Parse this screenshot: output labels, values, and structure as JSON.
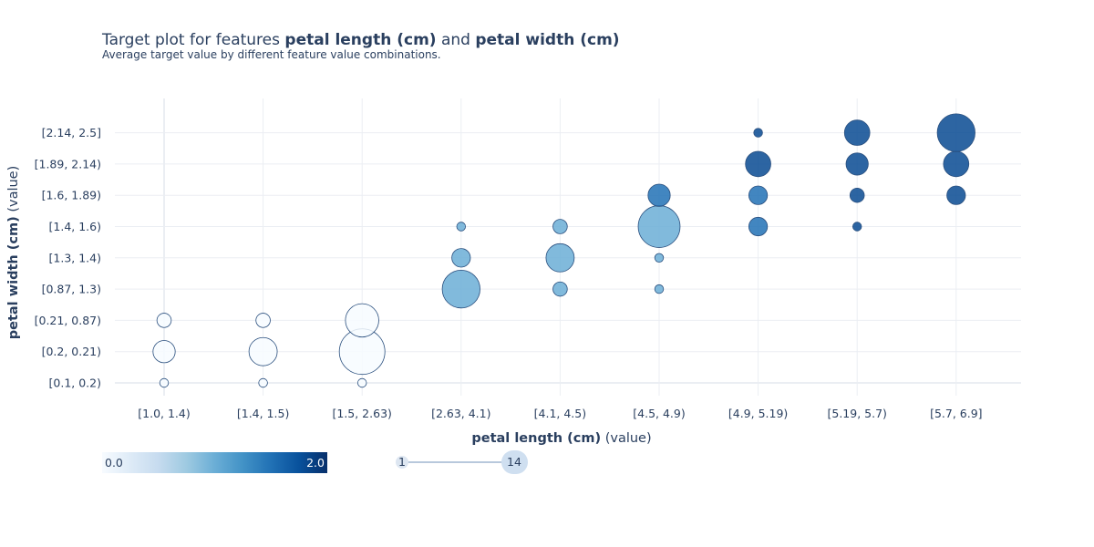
{
  "title": {
    "prefix": "Target plot for features ",
    "feature1": "petal length (cm)",
    "joiner": " and ",
    "feature2": "petal width (cm)",
    "subtitle": "Average target value by different feature value combinations."
  },
  "colors": {
    "grid": "#ebeef3",
    "scale": [
      "#f7fbff",
      "#deebf7",
      "#c6dbef",
      "#9ecae1",
      "#6baed6",
      "#4292c6",
      "#2171b5",
      "#08519c",
      "#08306b"
    ],
    "marker_line": "#2a4f7e",
    "text": "#2a3f5f"
  },
  "chart_data": {
    "type": "scatter",
    "x_categories": [
      "[1.0, 1.4)",
      "[1.4, 1.5)",
      "[1.5, 2.63)",
      "[2.63, 4.1)",
      "[4.1, 4.5)",
      "[4.5, 4.9)",
      "[4.9, 5.19)",
      "[5.19, 5.7)",
      "[5.7, 6.9]"
    ],
    "y_categories": [
      "[0.1, 0.2)",
      "[0.2, 0.21)",
      "[0.21, 0.87)",
      "[0.87, 1.3)",
      "[1.3, 1.4)",
      "[1.4, 1.6)",
      "[1.6, 1.89)",
      "[1.89, 2.14)",
      "[2.14, 2.5]"
    ],
    "xlabel": {
      "bold": "petal length (cm)",
      "normal": " (value)"
    },
    "ylabel": {
      "bold": "petal width (cm)",
      "normal": " (value)"
    },
    "color_range": [
      0.0,
      2.0
    ],
    "size_range": [
      1,
      14
    ],
    "colorbar": {
      "min_label": "0.0",
      "max_label": "2.0"
    },
    "sizebar": {
      "min_label": "1",
      "max_label": "14"
    },
    "points": [
      {
        "x": 0,
        "y": 0,
        "count": 1,
        "target": 0.0
      },
      {
        "x": 0,
        "y": 1,
        "count": 4,
        "target": 0.0
      },
      {
        "x": 0,
        "y": 2,
        "count": 2,
        "target": 0.0
      },
      {
        "x": 1,
        "y": 0,
        "count": 1,
        "target": 0.0
      },
      {
        "x": 1,
        "y": 1,
        "count": 6,
        "target": 0.0
      },
      {
        "x": 1,
        "y": 2,
        "count": 2,
        "target": 0.0
      },
      {
        "x": 2,
        "y": 0,
        "count": 1,
        "target": 0.0
      },
      {
        "x": 2,
        "y": 1,
        "count": 14,
        "target": 0.0
      },
      {
        "x": 2,
        "y": 2,
        "count": 8,
        "target": 0.0
      },
      {
        "x": 3,
        "y": 3,
        "count": 10,
        "target": 1.0
      },
      {
        "x": 3,
        "y": 4,
        "count": 3,
        "target": 1.0
      },
      {
        "x": 3,
        "y": 5,
        "count": 1,
        "target": 1.0
      },
      {
        "x": 4,
        "y": 3,
        "count": 2,
        "target": 1.0
      },
      {
        "x": 4,
        "y": 4,
        "count": 6,
        "target": 1.0
      },
      {
        "x": 4,
        "y": 5,
        "count": 2,
        "target": 1.0
      },
      {
        "x": 5,
        "y": 3,
        "count": 1,
        "target": 1.0
      },
      {
        "x": 5,
        "y": 4,
        "count": 1,
        "target": 1.0
      },
      {
        "x": 5,
        "y": 5,
        "count": 12,
        "target": 1.0
      },
      {
        "x": 5,
        "y": 6,
        "count": 4,
        "target": 1.5
      },
      {
        "x": 6,
        "y": 5,
        "count": 3,
        "target": 1.5
      },
      {
        "x": 6,
        "y": 6,
        "count": 3,
        "target": 1.5
      },
      {
        "x": 6,
        "y": 7,
        "count": 5,
        "target": 1.8
      },
      {
        "x": 6,
        "y": 8,
        "count": 1,
        "target": 1.8
      },
      {
        "x": 7,
        "y": 5,
        "count": 1,
        "target": 1.8
      },
      {
        "x": 7,
        "y": 6,
        "count": 2,
        "target": 1.8
      },
      {
        "x": 7,
        "y": 7,
        "count": 4,
        "target": 1.8
      },
      {
        "x": 7,
        "y": 8,
        "count": 5,
        "target": 1.8
      },
      {
        "x": 8,
        "y": 6,
        "count": 3,
        "target": 1.8
      },
      {
        "x": 8,
        "y": 7,
        "count": 5,
        "target": 1.8
      },
      {
        "x": 8,
        "y": 8,
        "count": 10,
        "target": 1.8
      }
    ]
  }
}
